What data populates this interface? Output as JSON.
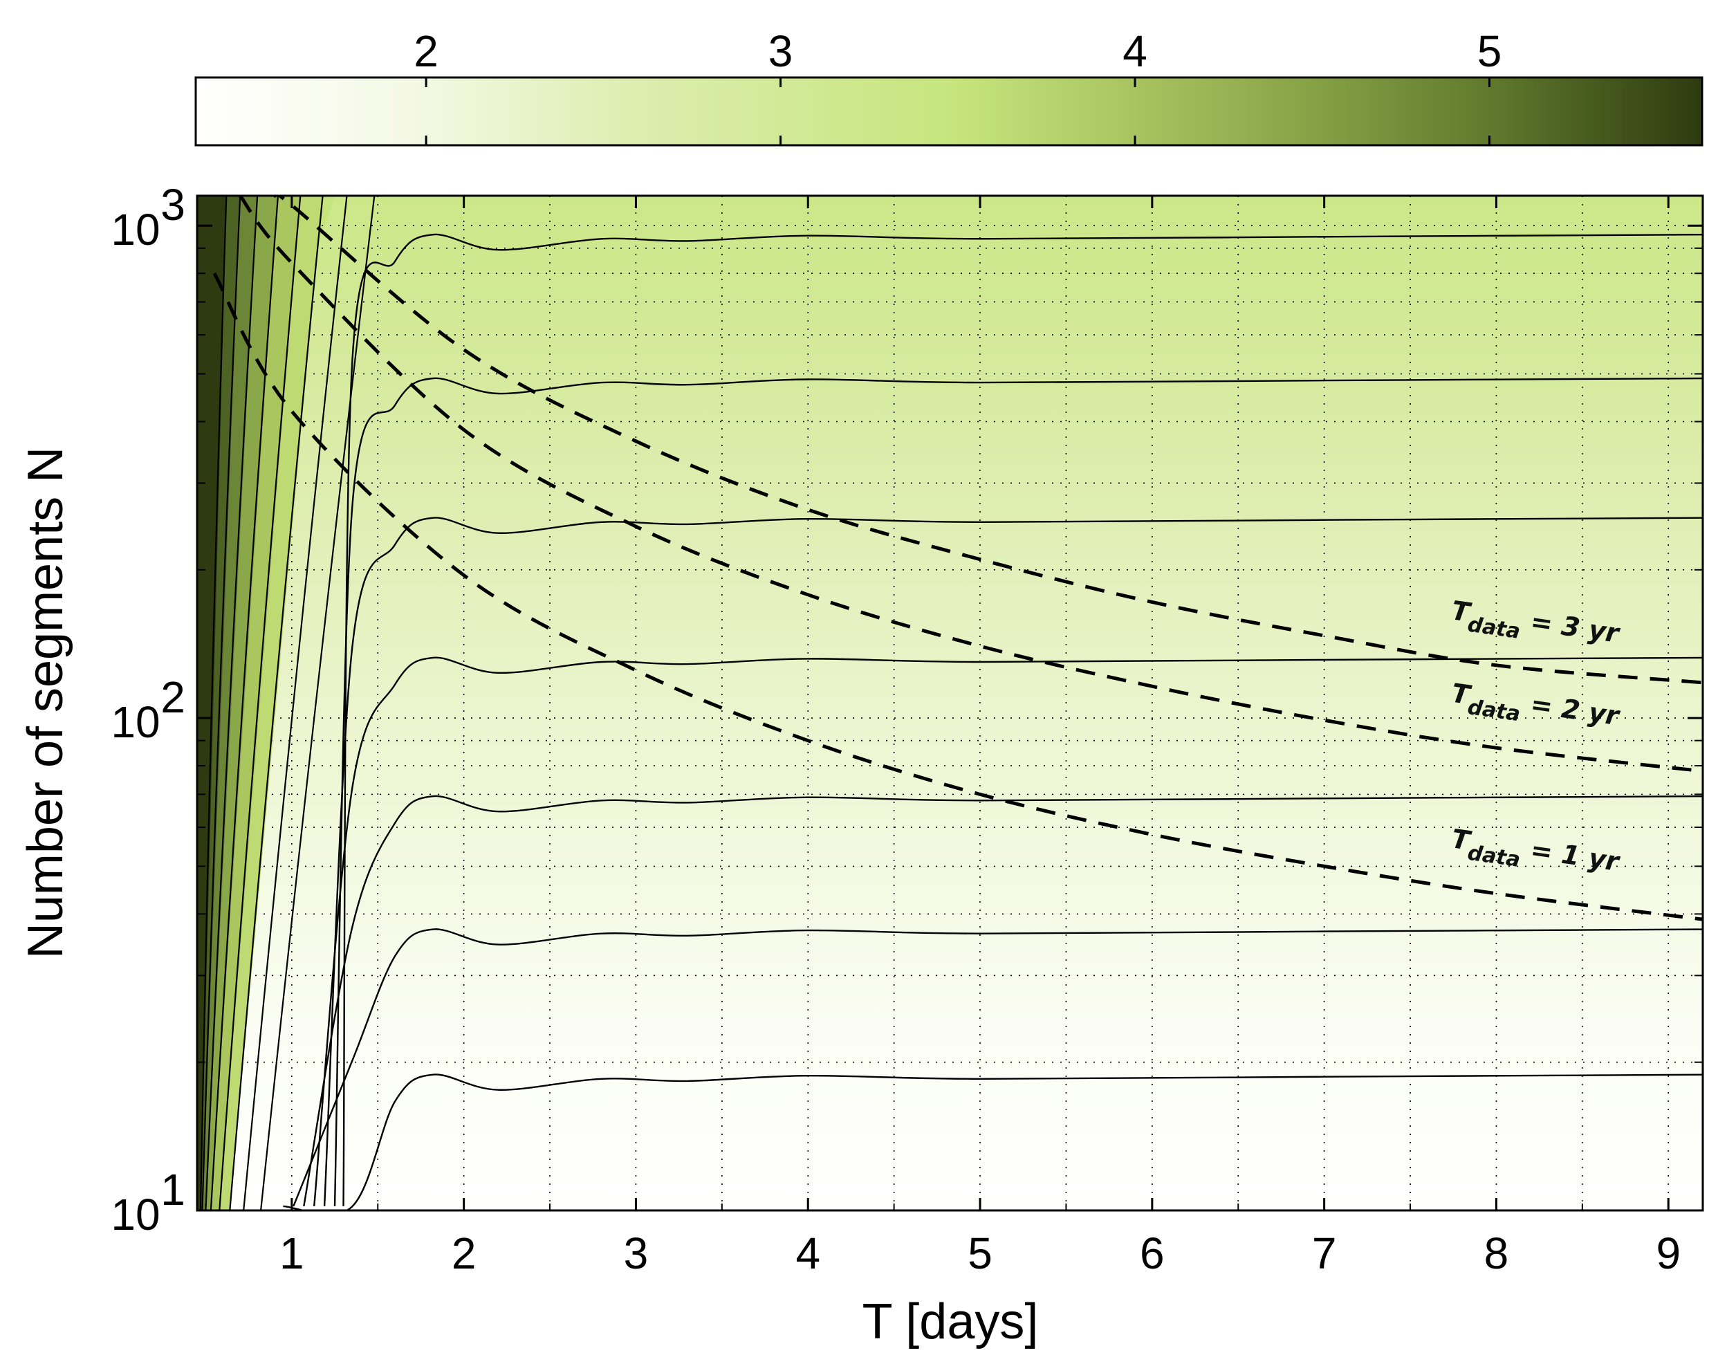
{
  "chart_data": {
    "type": "contour",
    "xlabel": "T [days]",
    "ylabel": "Number of segments N",
    "xlim": [
      0.45,
      9.2
    ],
    "ylim": [
      10,
      1150
    ],
    "yscale": "log",
    "grid": true,
    "x_ticks": [
      {
        "value": 1,
        "label": "1"
      },
      {
        "value": 2,
        "label": "2"
      },
      {
        "value": 3,
        "label": "3"
      },
      {
        "value": 4,
        "label": "4"
      },
      {
        "value": 5,
        "label": "5"
      },
      {
        "value": 6,
        "label": "6"
      },
      {
        "value": 7,
        "label": "7"
      },
      {
        "value": 8,
        "label": "8"
      },
      {
        "value": 9,
        "label": "9"
      }
    ],
    "y_ticks": [
      {
        "value": 10,
        "base": "10",
        "exp": "1"
      },
      {
        "value": 100,
        "base": "10",
        "exp": "2"
      },
      {
        "value": 1000,
        "base": "10",
        "exp": "3"
      }
    ],
    "colorbar": {
      "position": "top",
      "range": [
        1.35,
        5.6
      ],
      "ticks": [
        {
          "value": 2,
          "label": "2"
        },
        {
          "value": 3,
          "label": "3"
        },
        {
          "value": 4,
          "label": "4"
        },
        {
          "value": 5,
          "label": "5"
        }
      ],
      "colors": [
        {
          "v": 1.35,
          "c": "#ffffff"
        },
        {
          "v": 2.0,
          "c": "#f3f8e2"
        },
        {
          "v": 2.6,
          "c": "#dcedae"
        },
        {
          "v": 3.5,
          "c": "#c5e57c"
        },
        {
          "v": 4.0,
          "c": "#a8c460"
        },
        {
          "v": 4.5,
          "c": "#86a246"
        },
        {
          "v": 5.0,
          "c": "#5f7a2d"
        },
        {
          "v": 5.6,
          "c": "#2e3b10"
        }
      ]
    },
    "contour_levels_N": [
      18.5,
      36.5,
      68,
      130,
      250,
      480,
      940
    ],
    "dashed_curves": [
      {
        "label_main": "T",
        "label_sub": "data",
        "label_rest": " = 1 yr",
        "T_data_days": 365,
        "x": [
          0.55,
          1.0,
          2.0,
          3.0,
          4.0,
          5.0,
          6.0,
          7.0,
          8.0,
          9.2
        ],
        "y": [
          800,
          420,
          195,
          125,
          90,
          70,
          58,
          50,
          44,
          39
        ]
      },
      {
        "label_main": "T",
        "label_sub": "data",
        "label_rest": " = 2 yr",
        "T_data_days": 730,
        "x": [
          0.7,
          1.0,
          2.0,
          3.0,
          4.0,
          5.0,
          6.0,
          7.0,
          8.0,
          9.2
        ],
        "y": [
          1150,
          840,
          385,
          245,
          178,
          140,
          116,
          99,
          87,
          78
        ]
      },
      {
        "label_main": "T",
        "label_sub": "data",
        "label_rest": " = 3 yr",
        "T_data_days": 1095,
        "x": [
          0.9,
          1.0,
          2.0,
          3.0,
          4.0,
          5.0,
          6.0,
          7.0,
          8.0,
          9.2
        ],
        "y": [
          1150,
          1100,
          560,
          365,
          265,
          210,
          172,
          147,
          128,
          118
        ]
      }
    ]
  }
}
